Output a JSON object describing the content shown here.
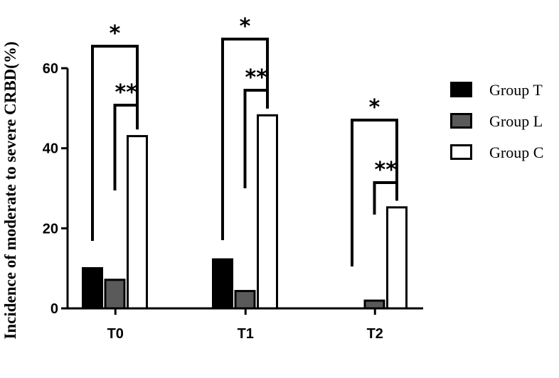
{
  "chart_data": {
    "type": "bar",
    "ylabel": "Incidence of moderate to severe CRBD(%)",
    "xlabel": "",
    "categories": [
      "T0",
      "T1",
      "T2"
    ],
    "ylim": [
      0,
      60
    ],
    "yticks": [
      "0",
      "20",
      "40",
      "60"
    ],
    "series": [
      {
        "name": "Group T",
        "color": "#000000",
        "values": [
          10.3,
          12.5,
          0
        ]
      },
      {
        "name": "Group L",
        "color": "#5a5a5a",
        "values": [
          7.4,
          4.6,
          2.2
        ]
      },
      {
        "name": "Group C",
        "color": "#ffffff",
        "values": [
          43.3,
          48.5,
          25.5
        ]
      }
    ],
    "legend_position": "right",
    "significance": [
      {
        "category": "T0",
        "compare": [
          "Group T",
          "Group C"
        ],
        "label": "*"
      },
      {
        "category": "T0",
        "compare": [
          "Group L",
          "Group C"
        ],
        "label": "**"
      },
      {
        "category": "T1",
        "compare": [
          "Group T",
          "Group C"
        ],
        "label": "*"
      },
      {
        "category": "T1",
        "compare": [
          "Group L",
          "Group C"
        ],
        "label": "**"
      },
      {
        "category": "T2",
        "compare": [
          "Group T",
          "Group C"
        ],
        "label": "*"
      },
      {
        "category": "T2",
        "compare": [
          "Group L",
          "Group C"
        ],
        "label": "**"
      }
    ]
  }
}
